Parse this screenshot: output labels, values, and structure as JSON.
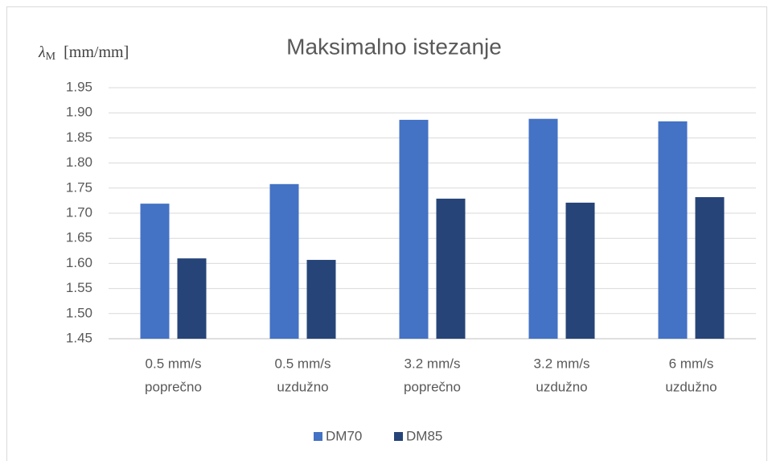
{
  "chart_data": {
    "type": "bar",
    "title": "Maksimalno istezanje",
    "ylabel_parts": [
      "λ",
      "M",
      "[mm/mm]"
    ],
    "categories": [
      [
        "0.5 mm/s",
        "poprečno"
      ],
      [
        "0.5 mm/s",
        "uzdužno"
      ],
      [
        "3.2 mm/s",
        "poprečno"
      ],
      [
        "3.2 mm/s",
        "uzdužno"
      ],
      [
        "6 mm/s",
        "uzdužno"
      ]
    ],
    "series": [
      {
        "name": "DM70",
        "color": "#4472c4",
        "values": [
          1.719,
          1.758,
          1.886,
          1.888,
          1.883
        ]
      },
      {
        "name": "DM85",
        "color": "#264478",
        "values": [
          1.61,
          1.607,
          1.729,
          1.721,
          1.732
        ]
      }
    ],
    "ylim": [
      1.45,
      1.95
    ],
    "yticks": [
      {
        "value": 1.45,
        "label": "1.45"
      },
      {
        "value": 1.5,
        "label": "1.50"
      },
      {
        "value": 1.55,
        "label": "1.55"
      },
      {
        "value": 1.6,
        "label": "1.60"
      },
      {
        "value": 1.65,
        "label": "1.65"
      },
      {
        "value": 1.7,
        "label": "1.70"
      },
      {
        "value": 1.75,
        "label": "1.75"
      },
      {
        "value": 1.8,
        "label": "1.80"
      },
      {
        "value": 1.85,
        "label": "1.85"
      },
      {
        "value": 1.9,
        "label": "1.90"
      },
      {
        "value": 1.95,
        "label": "1.95"
      }
    ],
    "grid": true,
    "legend": "bottom"
  }
}
